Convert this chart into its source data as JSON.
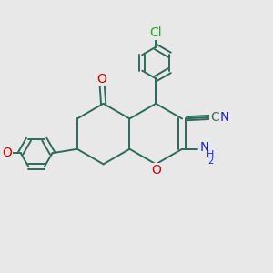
{
  "bg_color": "#e8e8e8",
  "bond_color": "#2d6b5a",
  "bond_width": 1.4,
  "atom_colors": {
    "O": "#cc0000",
    "N": "#2222cc",
    "Cl": "#22aa22",
    "C_dark": "#2d6b5a"
  },
  "fs_large": 10,
  "fs_small": 8,
  "fs_tiny": 7
}
